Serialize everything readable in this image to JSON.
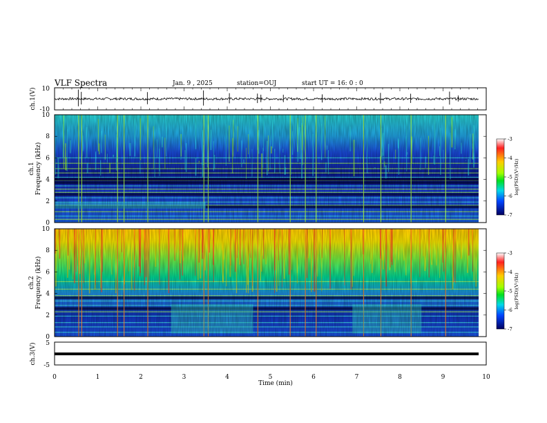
{
  "header": {
    "title": "VLF Spectra",
    "date": "Jan. 9 , 2025",
    "station": "station=OUJ",
    "start": "start UT =  16: 0  : 0"
  },
  "chart_data": [
    {
      "type": "line",
      "panel": "ch1-waveform",
      "ylabel": "ch.1(V)",
      "ylim": [
        -10,
        10
      ],
      "yticks": [
        "10",
        "-10"
      ],
      "note": "noisy waveform centred near 0 V with sporadic spikes"
    },
    {
      "type": "heatmap",
      "panel": "ch1-spectrogram",
      "ylabel": "ch.1\nFrequency (kHz)",
      "ylabel_line1": "ch.1",
      "ylabel_line2": "Frequency (kHz)",
      "ylim": [
        0,
        10
      ],
      "yticks": [
        "0",
        "2",
        "4",
        "6",
        "8",
        "10"
      ],
      "colorbar": {
        "label": "log(PSD)(V²/Hz)",
        "ticks": [
          "-3",
          "-4",
          "-5",
          "-6",
          "-7"
        ],
        "range": [
          -7,
          -3
        ]
      }
    },
    {
      "type": "heatmap",
      "panel": "ch2-spectrogram",
      "ylabel_line1": "ch.2",
      "ylabel_line2": "Frequency (kHz)",
      "ylim": [
        0,
        10
      ],
      "yticks": [
        "0",
        "2",
        "4",
        "6",
        "8",
        "10"
      ],
      "colorbar": {
        "label": "log(PSD)(V²/Hz)",
        "ticks": [
          "-3",
          "-4",
          "-5",
          "-6",
          "-7"
        ],
        "range": [
          -7,
          -3
        ]
      }
    },
    {
      "type": "line",
      "panel": "ch3-waveform",
      "ylabel": "ch.3(V)",
      "ylim": [
        -5,
        5
      ],
      "yticks": [
        "5",
        "-5"
      ],
      "note": "flat thick trace near -1 V"
    }
  ],
  "xaxis": {
    "label": "Time (min)",
    "range": [
      0,
      10
    ],
    "ticks": [
      "0",
      "1",
      "2",
      "3",
      "4",
      "5",
      "6",
      "7",
      "8",
      "9",
      "10"
    ]
  }
}
